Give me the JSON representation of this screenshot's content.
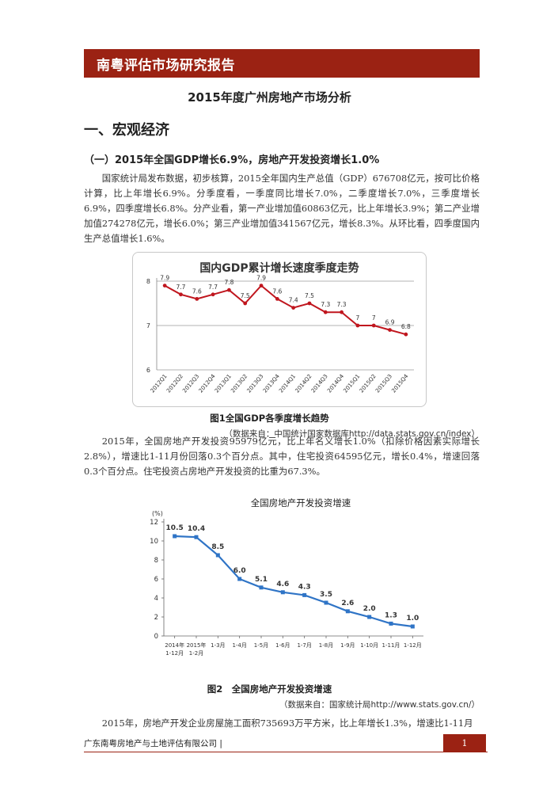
{
  "header": {
    "banner": "南粤评估市场研究报告"
  },
  "title": "2015年度广州房地产市场分析",
  "section1": {
    "heading": "一、宏观经济",
    "sub1": "（一）2015年全国GDP增长6.9%，房地产开发投资增长1.0%",
    "para1": "国家统计局发布数据，初步核算，2015全年国内生产总值（GDP）676708亿元，按可比价格计算，比上年增长6.9%。分季度看，一季度同比增长7.0%，二季度增长7.0%，三季度增长6.9%，四季度增长6.8%。分产业看，第一产业增加值60863亿元，比上年增长3.9%；第二产业增加值274278亿元，增长6.0%；第三产业增加值341567亿元，增长8.3%。从环比看，四季度国内生产总值增长1.6%。",
    "para2": "2015年，全国房地产开发投资95979亿元，比上年名义增长1.0%（扣除价格因素实际增长2.8%），增速比1-11月份回落0.3个百分点。其中，住宅投资64595亿元，增长0.4%，增速回落0.3个百分点。住宅投资占房地产开发投资的比重为67.3%。",
    "para3": "2015年，房地产开发企业房屋施工面积735693万平方米，比上年增长1.3%，增速比1-11月"
  },
  "figure1": {
    "caption": "图1全国GDP各季度增长趋势",
    "source": "（数据来自：中国统计国家数据库http://data.stats.gov.cn/index）"
  },
  "figure2": {
    "caption": "图2　全国房地产开发投资增速",
    "source": "（数据来自：国家统计局http://www.stats.gov.cn/）"
  },
  "footer": {
    "company": "广东南粤房地产与土地评估有限公司 |",
    "page": "1"
  },
  "chart_data": [
    {
      "type": "line",
      "title": "国内GDP累计增长速度季度走势",
      "categories": [
        "2012Q1",
        "2012Q2",
        "2012Q3",
        "2012Q4",
        "2013Q1",
        "2013Q2",
        "2013Q3",
        "2013Q4",
        "2014Q1",
        "2014Q2",
        "2014Q3",
        "2014Q4",
        "2015Q1",
        "2015Q2",
        "2015Q3",
        "2015Q4"
      ],
      "values": [
        7.9,
        7.7,
        7.6,
        7.7,
        7.8,
        7.5,
        7.9,
        7.6,
        7.4,
        7.5,
        7.3,
        7.3,
        7,
        7,
        6.9,
        6.8
      ],
      "value_labels": [
        "7.9",
        "7.7",
        "7.6",
        "7.7",
        "7.8",
        "7.5",
        "7.9",
        "7.6",
        "7.4",
        "7.5",
        "7.3",
        "7.3",
        "7",
        "7",
        "6.9",
        "6.8"
      ],
      "yticks": [
        "6",
        "7",
        "8"
      ],
      "ylim": [
        6,
        8
      ],
      "grid": true,
      "color": "#c0161e"
    },
    {
      "type": "line",
      "title": "全国房地产开发投资增速",
      "ylabel": "(%)",
      "categories": [
        "2014年 1-12月",
        "2015年 1-2月",
        "1-3月",
        "1-4月",
        "1-5月",
        "1-6月",
        "1-7月",
        "1-8月",
        "1-9月",
        "1-10月",
        "1-11月",
        "1-12月"
      ],
      "category_lines": [
        [
          "2014年",
          "1-12月"
        ],
        [
          "2015年",
          "1-2月"
        ],
        [
          "1-3月"
        ],
        [
          "1-4月"
        ],
        [
          "1-5月"
        ],
        [
          "1-6月"
        ],
        [
          "1-7月"
        ],
        [
          "1-8月"
        ],
        [
          "1-9月"
        ],
        [
          "1-10月"
        ],
        [
          "1-11月"
        ],
        [
          "1-12月"
        ]
      ],
      "values": [
        10.5,
        10.4,
        8.5,
        6.0,
        5.1,
        4.6,
        4.3,
        3.5,
        2.6,
        2.0,
        1.3,
        1.0
      ],
      "value_labels": [
        "10.5",
        "10.4",
        "8.5",
        "6.0",
        "5.1",
        "4.6",
        "4.3",
        "3.5",
        "2.6",
        "2.0",
        "1.3",
        "1.0"
      ],
      "yticks": [
        "0",
        "2",
        "4",
        "6",
        "8",
        "10",
        "12"
      ],
      "ylim": [
        0,
        12
      ],
      "grid": false,
      "color": "#2f74c6"
    }
  ]
}
